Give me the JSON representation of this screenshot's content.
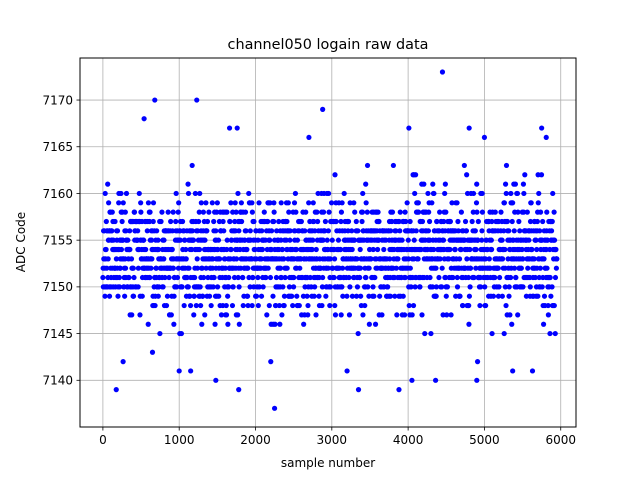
{
  "chart_data": {
    "type": "scatter",
    "title": "channel050 logain raw data",
    "xlabel": "sample number",
    "ylabel": "ADC Code",
    "xlim": [
      -300,
      6200
    ],
    "ylim": [
      7135,
      7174.5
    ],
    "xticks": [
      0,
      1000,
      2000,
      3000,
      4000,
      5000,
      6000
    ],
    "yticks": [
      7140,
      7145,
      7150,
      7155,
      7160,
      7165,
      7170
    ],
    "grid": true,
    "marker_color": "#0000ff",
    "n_samples": 5950,
    "x_step": 1,
    "y_min_typical": 7146,
    "y_max_typical": 7161,
    "y_center": 7153.5,
    "notable_points": [
      {
        "x": 175,
        "y": 7139
      },
      {
        "x": 265,
        "y": 7142
      },
      {
        "x": 650,
        "y": 7143
      },
      {
        "x": 680,
        "y": 7170
      },
      {
        "x": 540,
        "y": 7168
      },
      {
        "x": 1000,
        "y": 7141
      },
      {
        "x": 1150,
        "y": 7141
      },
      {
        "x": 1230,
        "y": 7170
      },
      {
        "x": 1480,
        "y": 7140
      },
      {
        "x": 1780,
        "y": 7139
      },
      {
        "x": 1660,
        "y": 7167
      },
      {
        "x": 1760,
        "y": 7167
      },
      {
        "x": 2250,
        "y": 7137
      },
      {
        "x": 2200,
        "y": 7142
      },
      {
        "x": 2880,
        "y": 7169
      },
      {
        "x": 2700,
        "y": 7166
      },
      {
        "x": 3200,
        "y": 7141
      },
      {
        "x": 3350,
        "y": 7139
      },
      {
        "x": 3880,
        "y": 7139
      },
      {
        "x": 4050,
        "y": 7140
      },
      {
        "x": 4010,
        "y": 7167
      },
      {
        "x": 4360,
        "y": 7140
      },
      {
        "x": 4450,
        "y": 7173
      },
      {
        "x": 4800,
        "y": 7167
      },
      {
        "x": 4900,
        "y": 7140
      },
      {
        "x": 4910,
        "y": 7142
      },
      {
        "x": 5000,
        "y": 7166
      },
      {
        "x": 5370,
        "y": 7141
      },
      {
        "x": 5630,
        "y": 7141
      },
      {
        "x": 5750,
        "y": 7167
      },
      {
        "x": 5810,
        "y": 7166
      }
    ]
  }
}
